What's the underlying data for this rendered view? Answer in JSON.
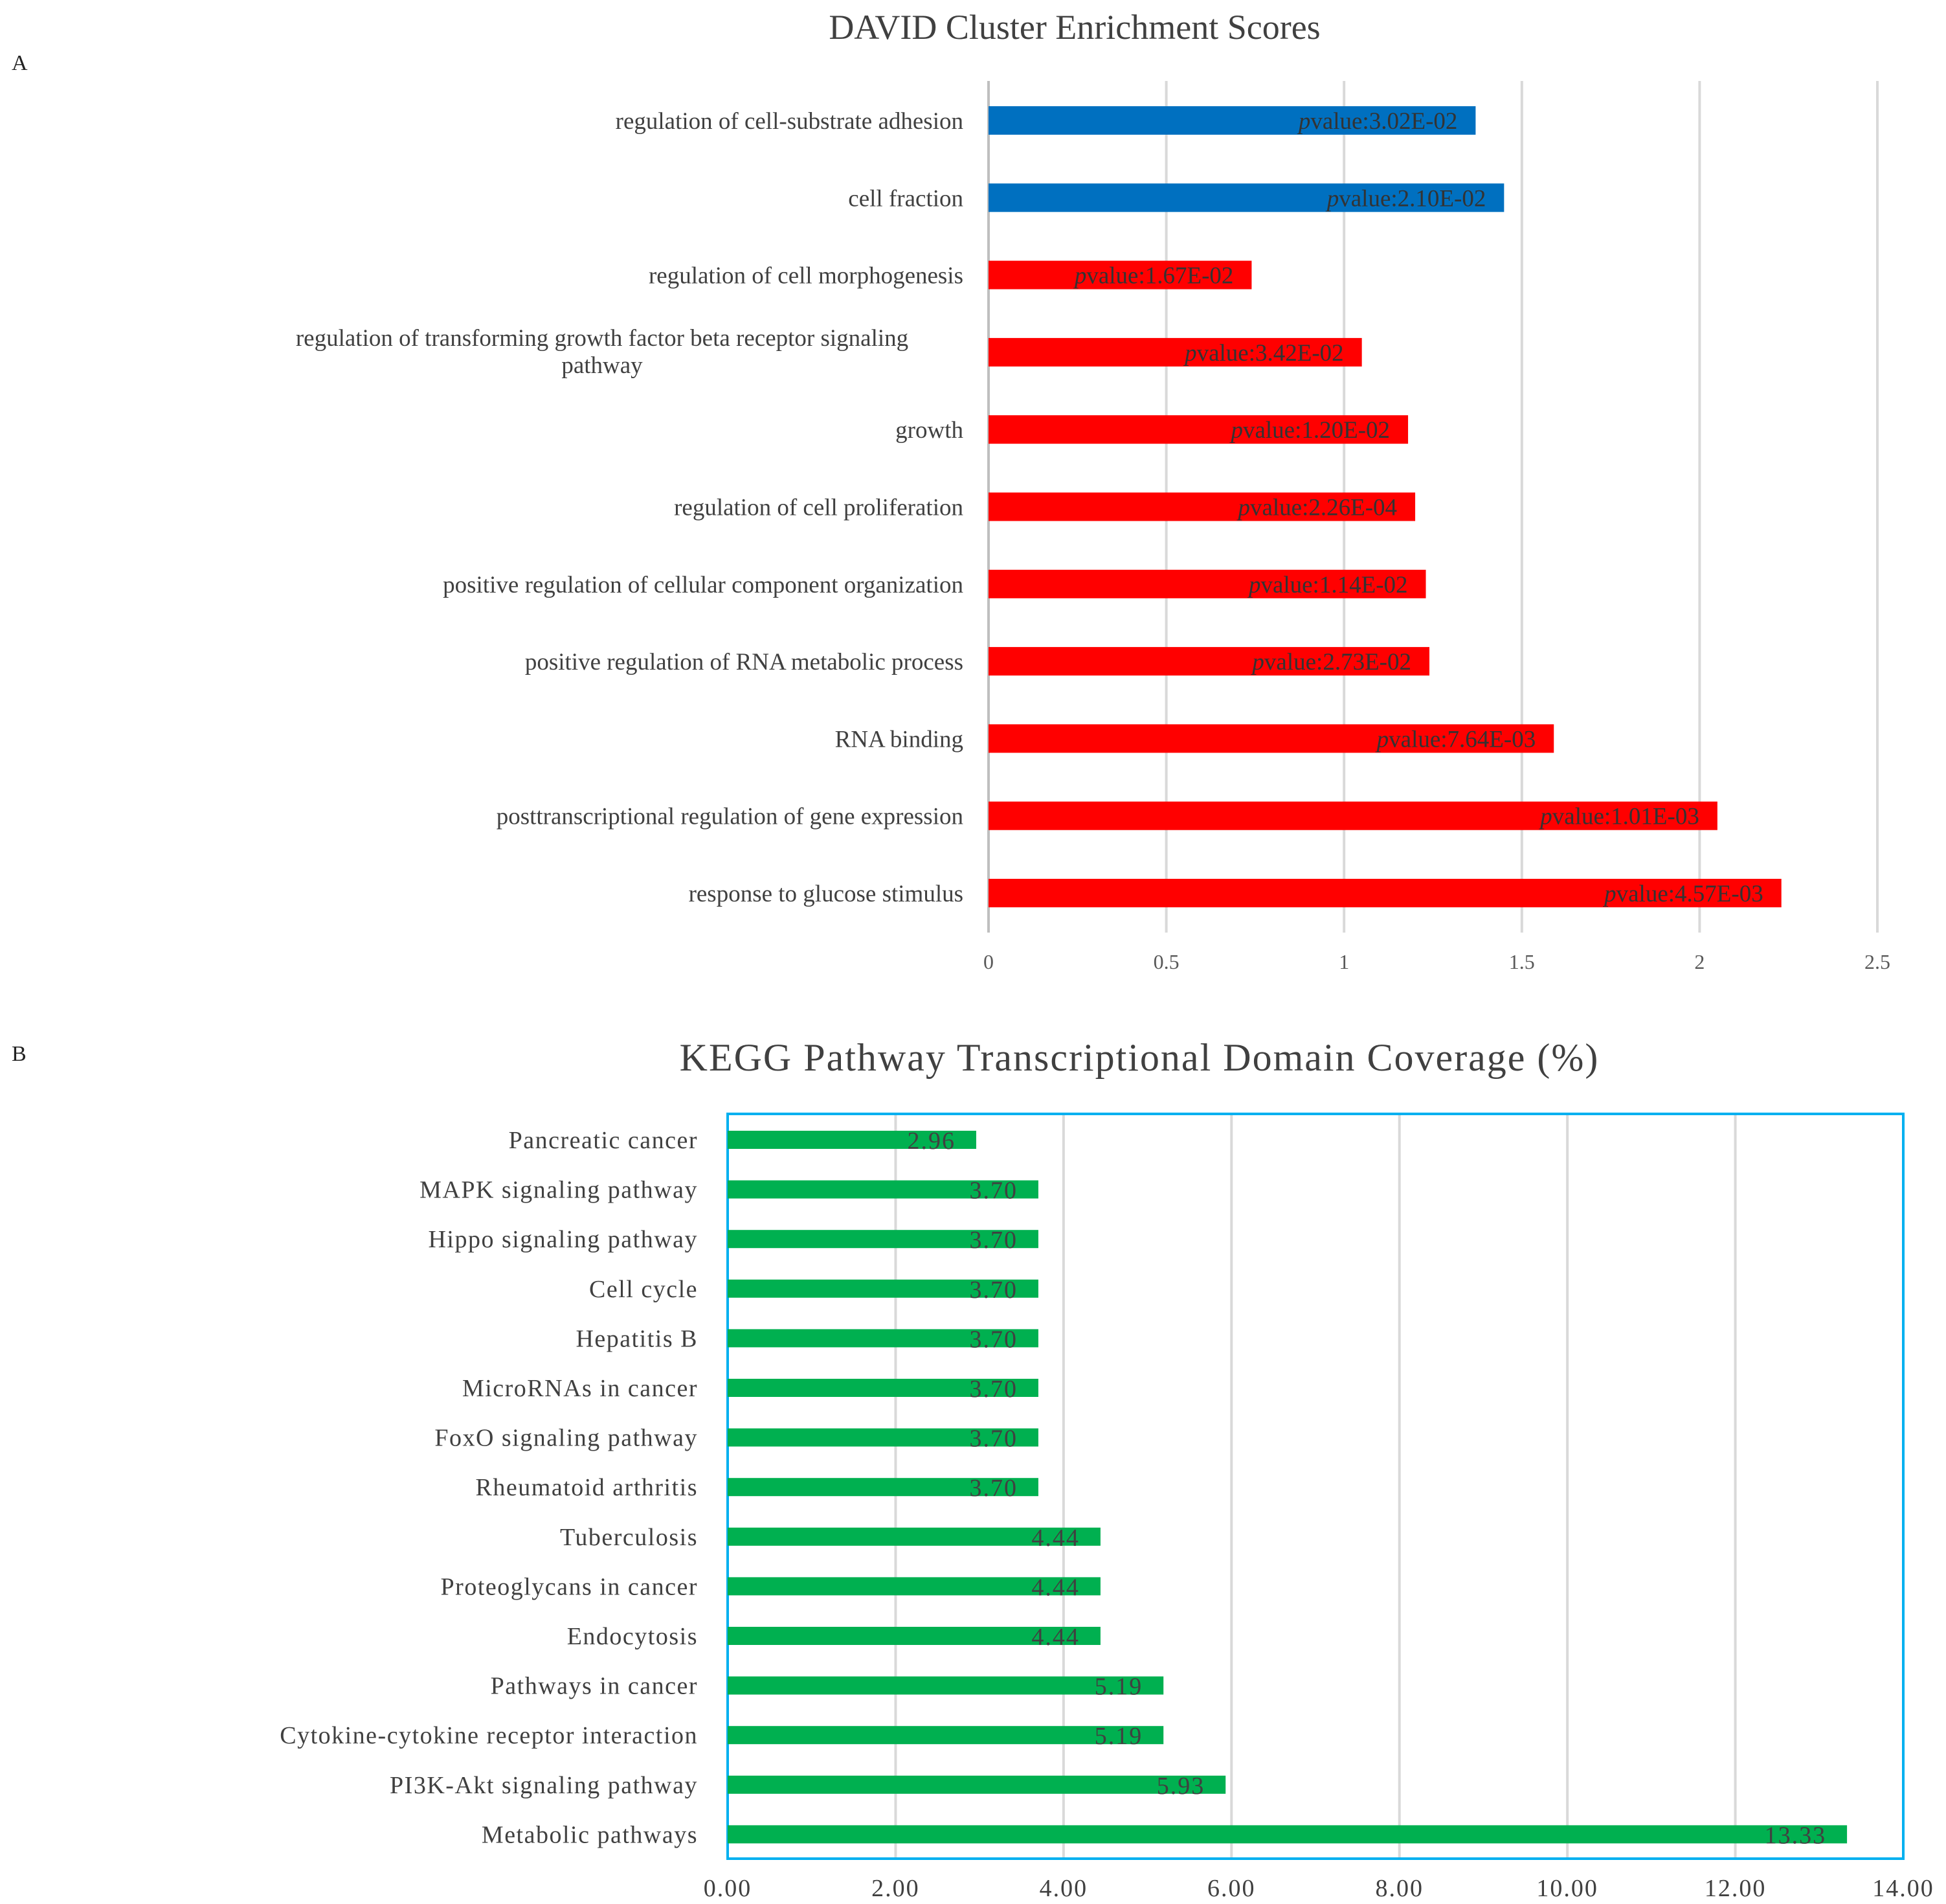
{
  "panel_labels": {
    "a": "A",
    "b": "B"
  },
  "chart_data": [
    {
      "type": "bar",
      "orientation": "horizontal",
      "title": "DAVID Cluster Enrichment Scores",
      "xlim": [
        0,
        2.5
      ],
      "xticks": [
        "0",
        "0.5",
        "1",
        "1.5",
        "2",
        "2.5"
      ],
      "xtick_values": [
        0,
        0.5,
        1,
        1.5,
        2,
        2.5
      ],
      "grid": true,
      "label_prefix": "p",
      "categories": [
        "regulation of cell-substrate adhesion",
        "cell fraction",
        "regulation of cell morphogenesis",
        "regulation of transforming growth factor beta receptor signaling pathway",
        "growth",
        "regulation of cell proliferation",
        "positive regulation of cellular component organization",
        "positive regulation of RNA metabolic process",
        "RNA binding",
        "posttranscriptional regulation of gene expression",
        "response to glucose stimulus"
      ],
      "category_lines": [
        [
          "regulation of cell-substrate adhesion"
        ],
        [
          "cell fraction"
        ],
        [
          "regulation of cell morphogenesis"
        ],
        [
          "regulation of transforming growth factor beta receptor signaling",
          "pathway"
        ],
        [
          "growth"
        ],
        [
          "regulation of cell proliferation"
        ],
        [
          "positive regulation of cellular component organization"
        ],
        [
          "positive regulation of RNA metabolic process"
        ],
        [
          "RNA binding"
        ],
        [
          "posttranscriptional regulation of gene expression"
        ],
        [
          "response to glucose stimulus"
        ]
      ],
      "values": [
        1.37,
        1.45,
        0.74,
        1.05,
        1.18,
        1.2,
        1.23,
        1.24,
        1.59,
        2.05,
        2.23
      ],
      "colors": [
        "#0070C0",
        "#0070C0",
        "#FF0000",
        "#FF0000",
        "#FF0000",
        "#FF0000",
        "#FF0000",
        "#FF0000",
        "#FF0000",
        "#FF0000",
        "#FF0000"
      ],
      "data_labels": [
        "value:3.02E-02",
        "value:2.10E-02",
        "value:1.67E-02",
        "value:3.42E-02",
        "value:1.20E-02",
        "value:2.26E-04",
        "value:1.14E-02",
        "value:2.73E-02",
        "value:7.64E-03",
        "value:1.01E-03",
        "value:4.57E-03"
      ]
    },
    {
      "type": "bar",
      "orientation": "horizontal",
      "title": "KEGG Pathway Transcriptional Domain Coverage (%)",
      "xlim": [
        0,
        14
      ],
      "xticks": [
        "0.00",
        "2.00",
        "4.00",
        "6.00",
        "8.00",
        "10.00",
        "12.00",
        "14.00"
      ],
      "xtick_values": [
        0,
        2,
        4,
        6,
        8,
        10,
        12,
        14
      ],
      "grid": true,
      "bar_color": "#00B050",
      "frame_color": "#00B0F0",
      "categories": [
        "Pancreatic cancer",
        "MAPK signaling pathway",
        "Hippo signaling pathway",
        "Cell cycle",
        "Hepatitis B",
        "MicroRNAs in cancer",
        "FoxO signaling pathway",
        "Rheumatoid arthritis",
        "Tuberculosis",
        "Proteoglycans in cancer",
        "Endocytosis",
        "Pathways in cancer",
        "Cytokine-cytokine receptor interaction",
        "PI3K-Akt signaling pathway",
        "Metabolic pathways"
      ],
      "values": [
        2.96,
        3.7,
        3.7,
        3.7,
        3.7,
        3.7,
        3.7,
        3.7,
        4.44,
        4.44,
        4.44,
        5.19,
        5.19,
        5.93,
        13.33
      ],
      "data_labels": [
        "2.96",
        "3.70",
        "3.70",
        "3.70",
        "3.70",
        "3.70",
        "3.70",
        "3.70",
        "4.44",
        "4.44",
        "4.44",
        "5.19",
        "5.19",
        "5.93",
        "13.33"
      ]
    }
  ]
}
